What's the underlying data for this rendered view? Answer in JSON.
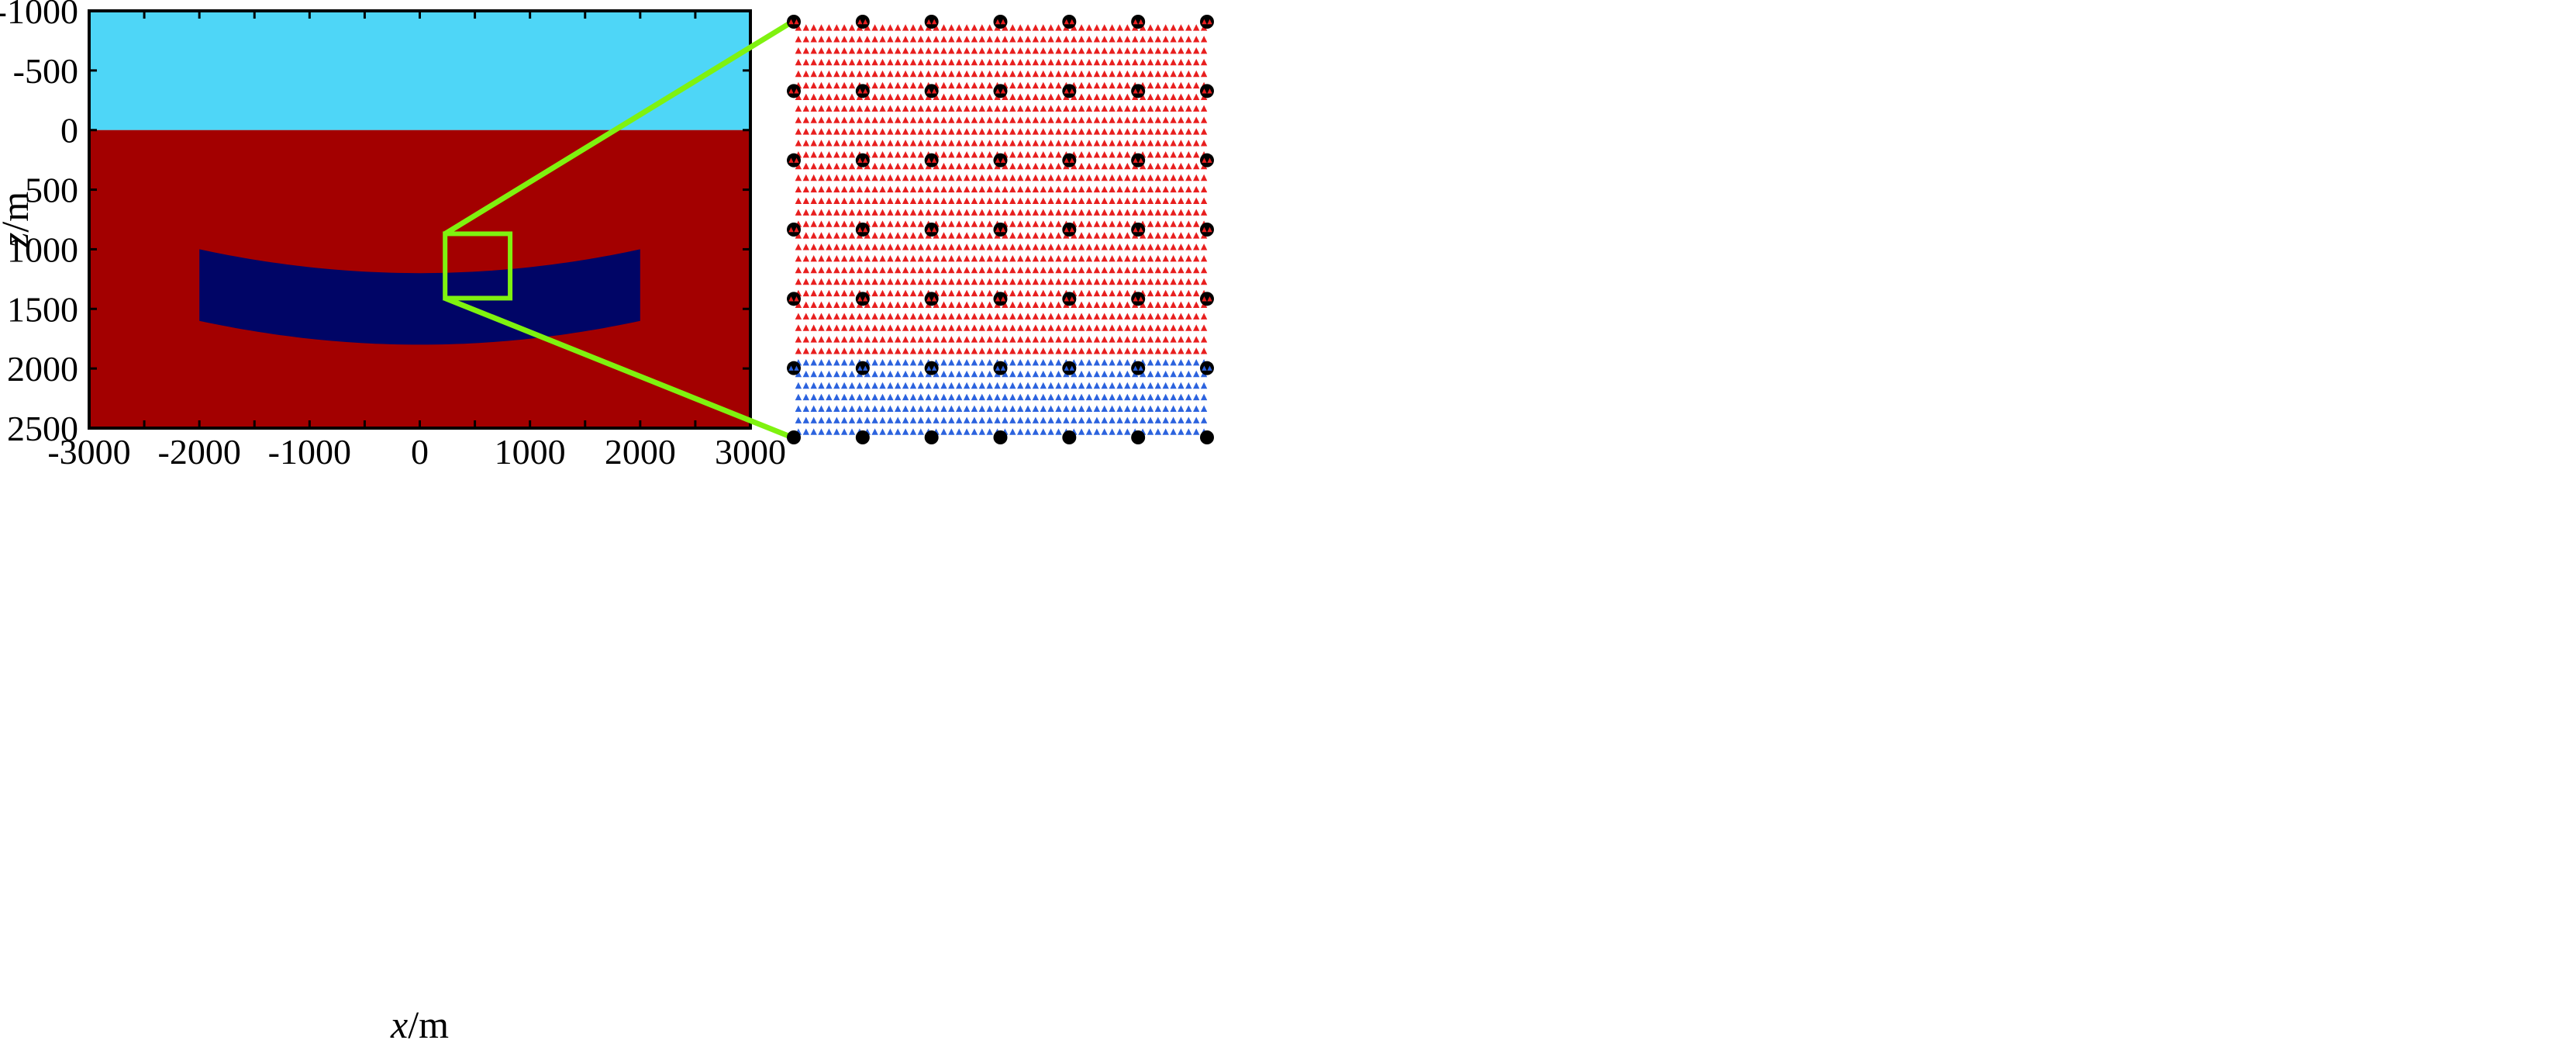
{
  "figure": {
    "x_axis": {
      "title_italic": "x",
      "title_unit": "/m",
      "range": [
        -3000,
        3000
      ],
      "ticks": [
        -3000,
        -2000,
        -1000,
        0,
        1000,
        2000,
        3000
      ],
      "tick_labels": [
        "-3000",
        "-2000",
        "-1000",
        "0",
        "1000",
        "2000",
        "3000"
      ],
      "minor_step": 500
    },
    "z_axis": {
      "title_italic": "z",
      "title_unit": "/m",
      "range": [
        -1000,
        2500
      ],
      "inverted": true,
      "ticks": [
        -1000,
        -500,
        0,
        500,
        1000,
        1500,
        2000,
        2500
      ],
      "tick_labels": [
        "-1000",
        "-500",
        "0",
        "500",
        "1000",
        "1500",
        "2000",
        "2500"
      ]
    },
    "layers": {
      "air": {
        "z_from": -1000,
        "z_to": 0,
        "color": "#4ed6f7"
      },
      "earth": {
        "z_from": 0,
        "z_to": 2500,
        "color": "#a30000"
      }
    },
    "anomaly": {
      "color": "#000566",
      "x_range": [
        -2000,
        2000
      ],
      "top_edge_z": {
        "at_edges": 1000,
        "at_center": 1200
      },
      "bottom_edge_z": {
        "at_edges": 1600,
        "at_center": 1800
      }
    },
    "zoom_box": {
      "color": "#7ff20f",
      "x_range": [
        230,
        820
      ],
      "z_range": [
        870,
        1410
      ]
    },
    "inset": {
      "nodes_per_row": 7,
      "node_rows": 7,
      "node_color": "#000000",
      "red_color": "#e81f1f",
      "blue_color": "#2c63de",
      "boundary_level": 4.8
    }
  }
}
